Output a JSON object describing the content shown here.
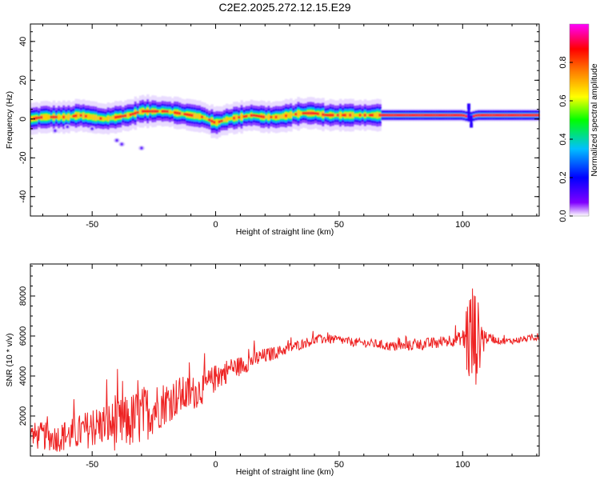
{
  "title": "C2E2.2025.272.12.15.E29",
  "chart_data": [
    {
      "type": "heatmap",
      "xlabel": "Height of straight line (km)",
      "ylabel": "Frequency (Hz)",
      "xlim": [
        -75,
        131
      ],
      "ylim": [
        -50,
        49
      ],
      "x_ticks": [
        -50,
        0,
        50,
        100
      ],
      "y_ticks": [
        -40,
        -20,
        0,
        20,
        40
      ],
      "colorbar": {
        "label": "Normalized spectral amplitude",
        "range": [
          0,
          1
        ],
        "ticks": [
          0.0,
          0.2,
          0.4,
          0.6,
          0.8
        ],
        "colors": [
          "#ffffff",
          "#7a00ff",
          "#0000ff",
          "#00bfff",
          "#00ff00",
          "#ffff00",
          "#ff8000",
          "#ff0000",
          "#ff00ff"
        ]
      },
      "ridge": {
        "x": [
          -75,
          -70,
          -65,
          -60,
          -55,
          -50,
          -45,
          -40,
          -35,
          -30,
          -25,
          -20,
          -15,
          -10,
          -5,
          0,
          5,
          10,
          15,
          20,
          25,
          30,
          35,
          40,
          45,
          50,
          55,
          60,
          65,
          70,
          80,
          90,
          100,
          103,
          106,
          110,
          120,
          131
        ],
        "freq": [
          0,
          1,
          1,
          1,
          2,
          1,
          0,
          1,
          2,
          4,
          4,
          4,
          3,
          2,
          1,
          -2,
          0,
          1,
          2,
          1,
          1,
          2,
          3,
          3,
          2,
          2,
          2,
          2,
          2,
          2,
          2,
          2,
          2,
          1,
          2,
          2,
          2,
          2
        ]
      },
      "blobs": [
        {
          "x": -65,
          "freq": -6
        },
        {
          "x": -60,
          "freq": -4
        },
        {
          "x": -50,
          "freq": -5
        },
        {
          "x": -40,
          "freq": -11
        },
        {
          "x": -38,
          "freq": -13
        },
        {
          "x": -30,
          "freq": -15
        }
      ]
    },
    {
      "type": "line",
      "xlabel": "Height of straight line (km)",
      "ylabel": "SNR (10 * v/v)",
      "xlim": [
        -75,
        131
      ],
      "ylim": [
        0,
        9600
      ],
      "x_ticks": [
        -50,
        0,
        50,
        100
      ],
      "y_ticks": [
        2000,
        4000,
        6000,
        8000
      ],
      "series": [
        {
          "color": "#ee2222",
          "x": [
            -75,
            -70,
            -65,
            -60,
            -55,
            -50,
            -45,
            -40,
            -35,
            -30,
            -25,
            -20,
            -15,
            -10,
            -5,
            0,
            5,
            10,
            15,
            20,
            25,
            30,
            35,
            40,
            45,
            50,
            55,
            60,
            65,
            70,
            75,
            80,
            85,
            90,
            95,
            100,
            102,
            104,
            106,
            110,
            115,
            120,
            125,
            131
          ],
          "y": [
            1000,
            1000,
            900,
            1000,
            1200,
            1400,
            1600,
            1500,
            1700,
            2000,
            2400,
            2700,
            3000,
            3100,
            3400,
            3900,
            4300,
            4500,
            4800,
            5000,
            5200,
            5400,
            5600,
            5800,
            5850,
            5800,
            5700,
            5650,
            5600,
            5500,
            5450,
            5550,
            5600,
            5650,
            5800,
            5900,
            6000,
            5800,
            5900,
            5900,
            5750,
            5750,
            5850,
            5950
          ],
          "noise": [
            700,
            700,
            700,
            800,
            900,
            1000,
            1100,
            1300,
            1400,
            1500,
            1300,
            1100,
            1000,
            900,
            800,
            700,
            600,
            500,
            450,
            400,
            300,
            280,
            260,
            250,
            230,
            220,
            220,
            220,
            230,
            240,
            260,
            280,
            300,
            320,
            330,
            350,
            2500,
            3200,
            2000,
            200,
            160,
            160,
            160,
            160
          ]
        }
      ]
    }
  ]
}
